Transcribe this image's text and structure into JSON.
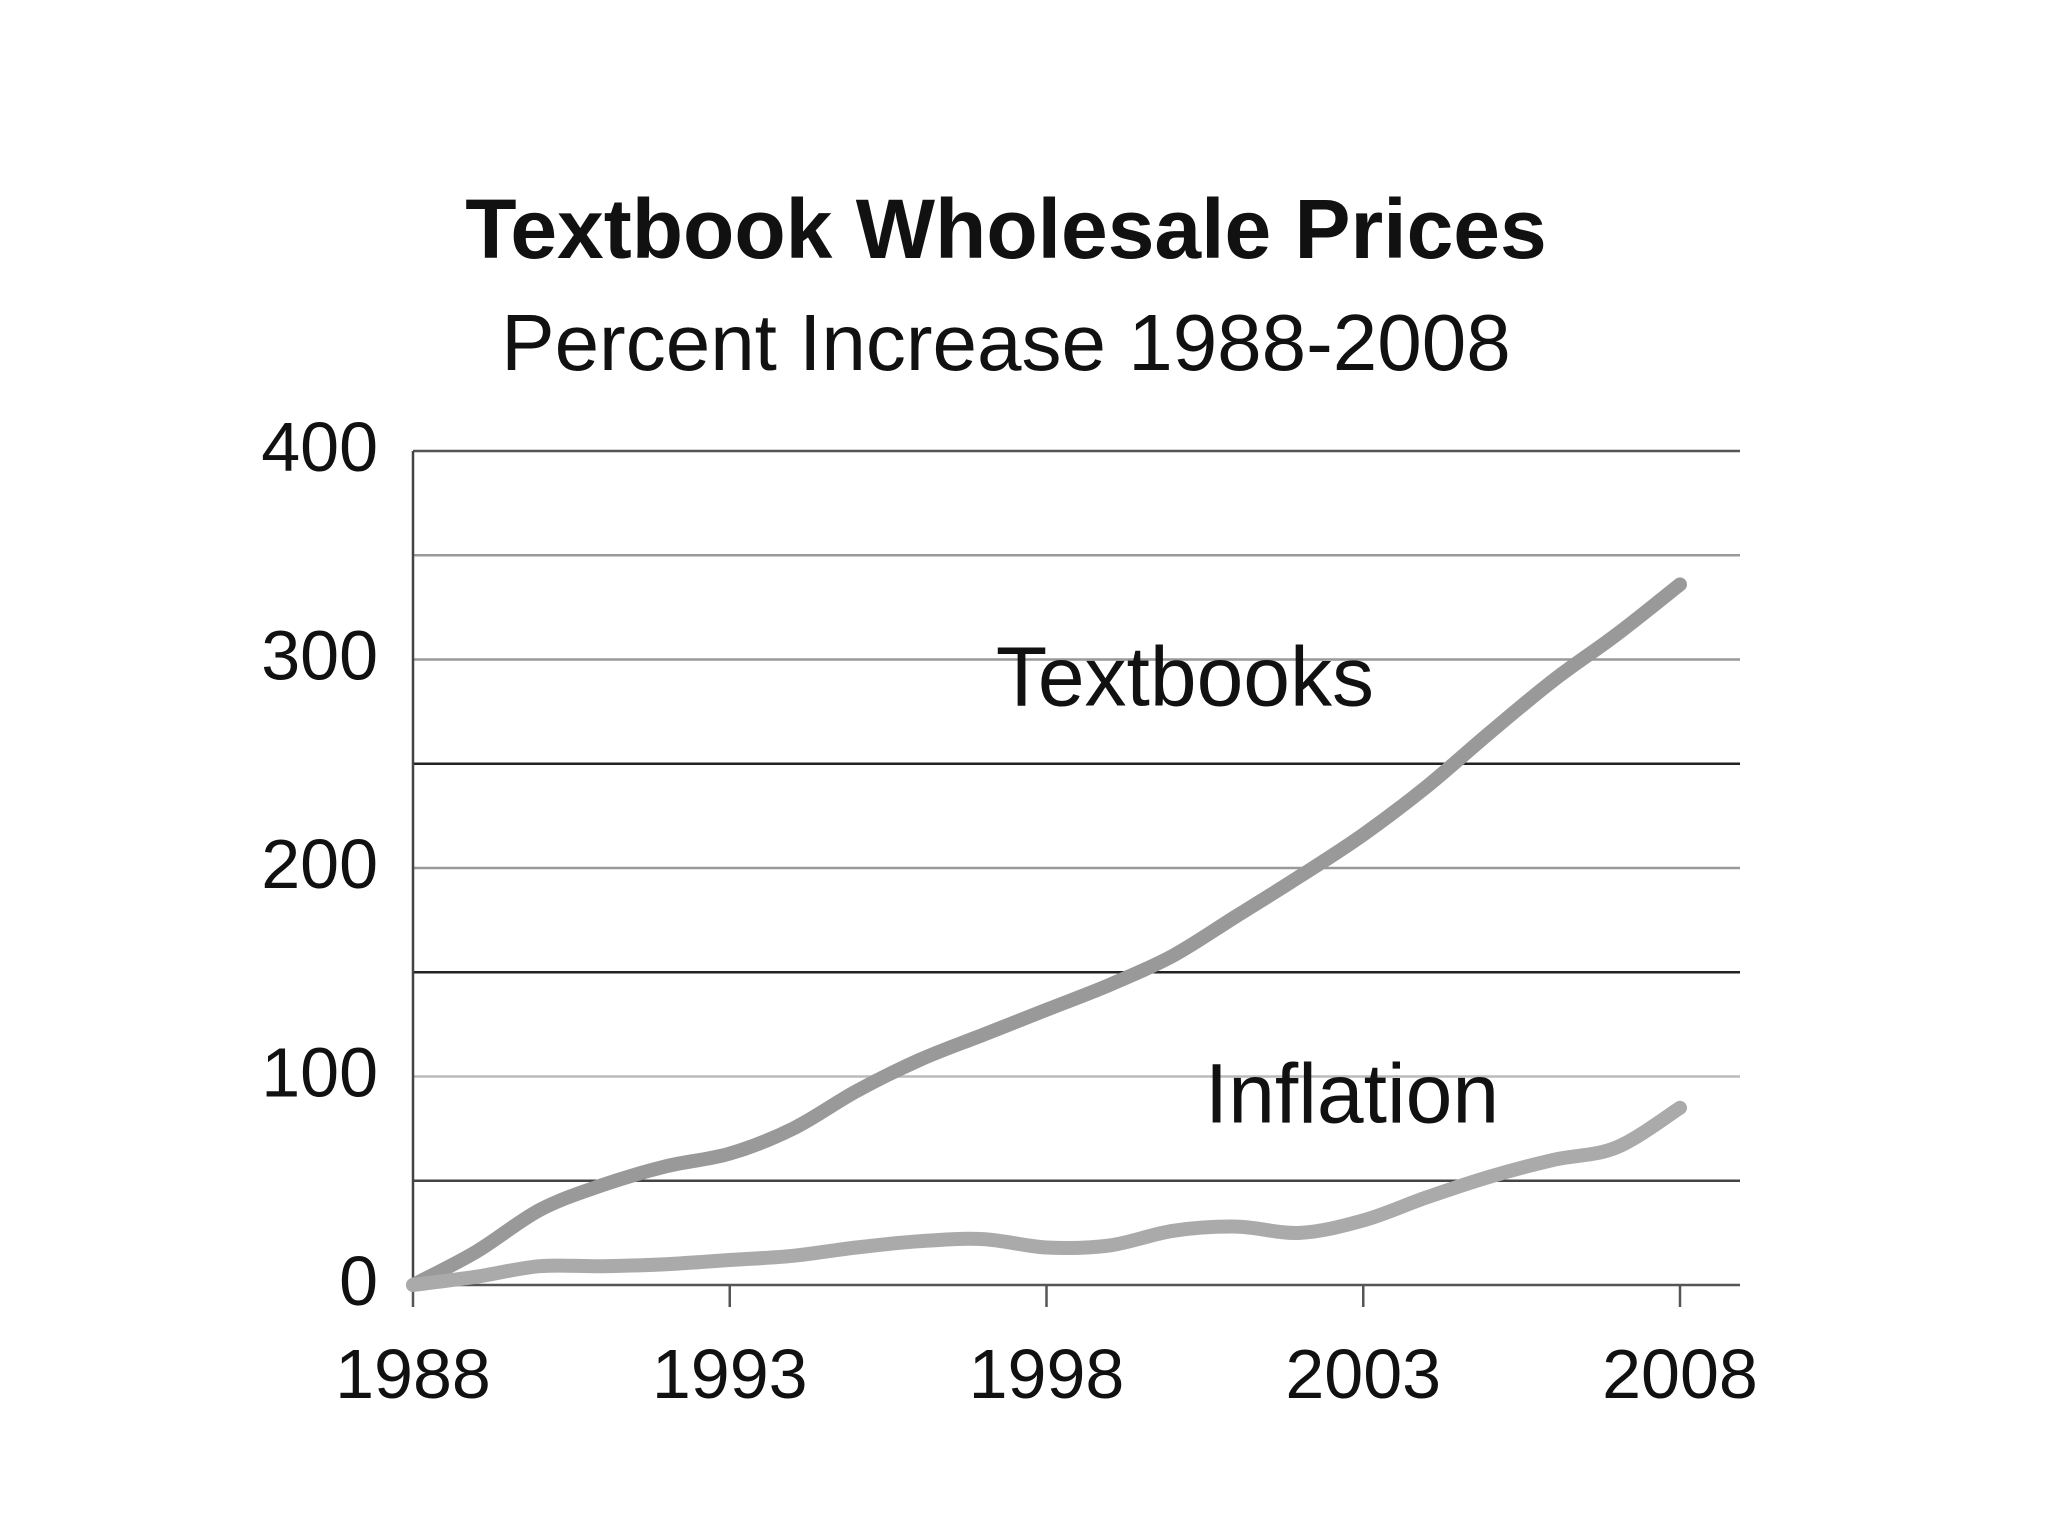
{
  "chart_data": {
    "type": "line",
    "title": "Textbook Wholesale Prices",
    "subtitle": "Percent Increase 1988-2008",
    "xlabel": "",
    "ylabel": "",
    "xlim": [
      1988,
      2008
    ],
    "ylim": [
      0,
      400
    ],
    "x_ticks": [
      1988,
      1993,
      1998,
      2003,
      2008
    ],
    "x_tick_labels": [
      "1988",
      "1993",
      "1998",
      "2003",
      "2008"
    ],
    "y_ticks": [
      0,
      100,
      200,
      300,
      400
    ],
    "y_tick_labels": [
      "0",
      "100",
      "200",
      "300",
      "400"
    ],
    "grid": true,
    "gridlines": [
      {
        "value": 0,
        "color": "#555555"
      },
      {
        "value": 50,
        "color": "#444444"
      },
      {
        "value": 100,
        "color": "#bbbbbb"
      },
      {
        "value": 150,
        "color": "#222222"
      },
      {
        "value": 200,
        "color": "#999999"
      },
      {
        "value": 250,
        "color": "#222222"
      },
      {
        "value": 300,
        "color": "#999999"
      },
      {
        "value": 350,
        "color": "#999999"
      },
      {
        "value": 400,
        "color": "#555555"
      }
    ],
    "legend": "none",
    "series": [
      {
        "name": "Textbooks",
        "color": "#999999",
        "label_anchor": {
          "x": 1997.2,
          "y": 278
        },
        "x": [
          1988,
          1989,
          1990,
          1991,
          1992,
          1993,
          1994,
          1995,
          1996,
          1997,
          1998,
          1999,
          2000,
          2001,
          2002,
          2003,
          2004,
          2005,
          2006,
          2007,
          2008
        ],
        "y": [
          0,
          16,
          36,
          48,
          57,
          63,
          75,
          93,
          108,
          120,
          132,
          144,
          158,
          177,
          196,
          216,
          239,
          265,
          290,
          312,
          336
        ]
      },
      {
        "name": "Inflation",
        "color": "#aaaaaa",
        "label_anchor": {
          "x": 2000.5,
          "y": 78
        },
        "x": [
          1988,
          1989,
          1990,
          1991,
          1992,
          1993,
          1994,
          1995,
          1996,
          1997,
          1998,
          1999,
          2000,
          2001,
          2002,
          2003,
          2004,
          2005,
          2006,
          2007,
          2008
        ],
        "y": [
          0,
          4,
          9,
          9,
          10,
          12,
          14,
          18,
          21,
          22,
          18,
          19,
          26,
          28,
          25,
          31,
          42,
          52,
          60,
          66,
          85
        ]
      }
    ]
  }
}
